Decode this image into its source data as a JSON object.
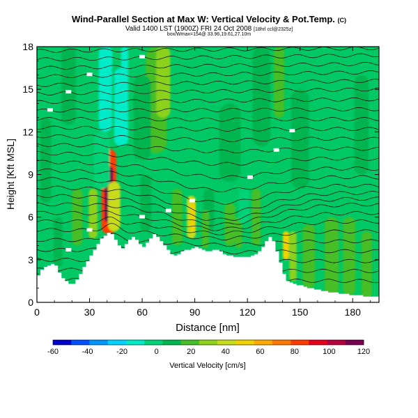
{
  "header": {
    "title": "Wind-Parallel Section at Max W: Vertical Velocity & Pot.Temp.",
    "copyright": "(C)",
    "valid_line": "Valid 1400 LST (1900Z) FRI 24 Oct 2008",
    "valid_suffix": "[18hrl ccl@2325z]",
    "subtitle": "box/Wmax=154@ 33.96,19.61,27.10m"
  },
  "chart_data": {
    "type": "heatmap",
    "xlabel": "Distance [nm]",
    "ylabel": "Height [Kft MSL]",
    "xlim": [
      0,
      195
    ],
    "ylim": [
      0,
      18
    ],
    "x_ticks": [
      0,
      30,
      60,
      90,
      120,
      150,
      180
    ],
    "y_ticks": [
      0,
      3,
      6,
      9,
      12,
      15,
      18
    ],
    "colorbar": {
      "label": "Vertical Velocity [cm/s]",
      "ticks": [
        -60,
        -40,
        -20,
        0,
        20,
        40,
        60,
        80,
        100,
        120
      ],
      "colors": [
        "#0000c8",
        "#0050ff",
        "#0096ff",
        "#00d2ff",
        "#00ebc8",
        "#00d278",
        "#00b450",
        "#46be28",
        "#8cd21e",
        "#c8dc1e",
        "#f0d200",
        "#ffaa00",
        "#ff7800",
        "#ff3c00",
        "#e6001e",
        "#b4003c",
        "#780050"
      ]
    },
    "terrain": {
      "x": [
        0,
        2,
        4,
        6,
        8,
        10,
        12,
        14,
        16,
        18,
        20,
        22,
        24,
        26,
        28,
        30,
        32,
        34,
        36,
        38,
        40,
        42,
        44,
        46,
        48,
        50,
        52,
        54,
        56,
        58,
        60,
        62,
        64,
        66,
        68,
        70,
        72,
        74,
        76,
        78,
        80,
        82,
        84,
        86,
        88,
        90,
        92,
        94,
        96,
        98,
        100,
        102,
        104,
        106,
        108,
        110,
        112,
        114,
        116,
        118,
        120,
        122,
        124,
        126,
        128,
        130,
        132,
        134,
        136,
        138,
        140,
        142,
        144,
        146,
        148,
        150,
        152,
        154,
        156,
        158,
        160,
        162,
        164,
        166,
        168,
        170,
        172,
        174,
        176,
        178,
        180,
        182,
        184,
        186,
        188,
        190,
        192,
        195
      ],
      "y": [
        1.9,
        2.3,
        2.5,
        2.6,
        2.7,
        2.6,
        2.1,
        1.7,
        1.5,
        1.3,
        1.3,
        1.6,
        2.0,
        2.5,
        2.9,
        3.3,
        3.7,
        4.1,
        4.5,
        4.7,
        4.9,
        4.8,
        4.4,
        4.0,
        3.8,
        4.1,
        4.4,
        4.6,
        4.4,
        4.1,
        3.9,
        4.2,
        4.5,
        4.8,
        4.6,
        4.3,
        4.0,
        3.7,
        3.4,
        3.3,
        3.4,
        3.6,
        3.7,
        3.7,
        3.8,
        3.9,
        3.8,
        3.7,
        3.6,
        3.6,
        3.7,
        3.7,
        3.6,
        3.4,
        3.3,
        3.3,
        3.2,
        3.2,
        3.2,
        3.2,
        3.2,
        3.3,
        3.4,
        3.6,
        3.9,
        4.3,
        4.6,
        4.3,
        3.6,
        2.8,
        2.0,
        1.5,
        1.4,
        1.3,
        1.2,
        1.2,
        1.1,
        1.0,
        1.0,
        0.9,
        0.9,
        0.8,
        0.8,
        0.7,
        0.7,
        0.7,
        0.6,
        0.6,
        0.6,
        0.5,
        0.5,
        0.5,
        0.5,
        0.4,
        0.4,
        0.4,
        0.4,
        0.4
      ]
    },
    "features": [
      {
        "x": 41,
        "y0": 4.8,
        "y1": 10.8,
        "w": 4.2,
        "v": 85
      },
      {
        "x": 41,
        "y0": 5.6,
        "y1": 9.6,
        "w": 2.4,
        "v": 110
      },
      {
        "x": 44,
        "y0": 5.0,
        "y1": 8.5,
        "w": 3.5,
        "v": 40
      },
      {
        "x": 40,
        "y0": 16.2,
        "y1": 18.0,
        "w": 3.0,
        "v": -15
      },
      {
        "x": 39,
        "y0": 12.0,
        "y1": 18.0,
        "w": 3.8,
        "v": -8
      },
      {
        "x": 37,
        "y0": 8.0,
        "y1": 12.0,
        "w": 4.5,
        "v": -2
      },
      {
        "x": 48,
        "y0": 11.0,
        "y1": 16.5,
        "w": 4.0,
        "v": -8
      },
      {
        "x": 50,
        "y0": 15.0,
        "y1": 18.0,
        "w": 2.0,
        "v": -10
      },
      {
        "x": 68,
        "y0": 10.5,
        "y1": 18.0,
        "w": 6.0,
        "v": 15
      },
      {
        "x": 72,
        "y0": 13.0,
        "y1": 18.0,
        "w": 4.0,
        "v": 28
      },
      {
        "x": 60,
        "y0": 10.0,
        "y1": 16.0,
        "w": 5.0,
        "v": 8
      },
      {
        "x": 88,
        "y0": 4.5,
        "y1": 7.5,
        "w": 2.5,
        "v": 40
      },
      {
        "x": 89,
        "y0": 5.0,
        "y1": 7.0,
        "w": 1.5,
        "v": 55
      },
      {
        "x": 98,
        "y0": 5.0,
        "y1": 8.0,
        "w": 3.0,
        "v": 8
      },
      {
        "x": 96,
        "y0": 3.8,
        "y1": 6.5,
        "w": 2.0,
        "v": 22
      },
      {
        "x": 110,
        "y0": 4.0,
        "y1": 7.0,
        "w": 3.0,
        "v": 22
      },
      {
        "x": 115,
        "y0": 3.8,
        "y1": 6.0,
        "w": 2.0,
        "v": 15
      },
      {
        "x": 118,
        "y0": 5.5,
        "y1": 8.0,
        "w": 3.0,
        "v": -3
      },
      {
        "x": 128,
        "y0": 11.0,
        "y1": 18.0,
        "w": 5.0,
        "v": 12
      },
      {
        "x": 138,
        "y0": 13.0,
        "y1": 18.0,
        "w": 3.0,
        "v": 18
      },
      {
        "x": 142,
        "y0": 3.0,
        "y1": 5.0,
        "w": 1.8,
        "v": 48
      },
      {
        "x": 146,
        "y0": 1.5,
        "y1": 5.0,
        "w": 2.0,
        "v": 25
      },
      {
        "x": 155,
        "y0": 1.0,
        "y1": 5.5,
        "w": 3.5,
        "v": 22
      },
      {
        "x": 168,
        "y0": 0.5,
        "y1": 6.0,
        "w": 4.0,
        "v": 20
      },
      {
        "x": 178,
        "y0": 0.5,
        "y1": 6.0,
        "w": 3.5,
        "v": 18
      },
      {
        "x": 188,
        "y0": 0.3,
        "y1": 5.0,
        "w": 3.0,
        "v": 22
      },
      {
        "x": 18,
        "y0": 12.5,
        "y1": 18.0,
        "w": 4.0,
        "v": 8
      },
      {
        "x": 5,
        "y0": 7.0,
        "y1": 13.0,
        "w": 3.0,
        "v": 10
      },
      {
        "x": 23,
        "y0": 4.0,
        "y1": 8.0,
        "w": 3.0,
        "v": 15
      },
      {
        "x": 32,
        "y0": 4.5,
        "y1": 8.0,
        "w": 2.5,
        "v": 25
      },
      {
        "x": 12,
        "y0": 2.5,
        "y1": 6.0,
        "w": 2.5,
        "v": 12
      },
      {
        "x": 62,
        "y0": 5.0,
        "y1": 9.0,
        "w": 3.0,
        "v": 10
      },
      {
        "x": 80,
        "y0": 4.0,
        "y1": 8.0,
        "w": 3.0,
        "v": 15
      },
      {
        "x": 125,
        "y0": 4.0,
        "y1": 8.0,
        "w": 2.5,
        "v": 15
      },
      {
        "x": 110,
        "y0": 8.5,
        "y1": 14.0,
        "w": 6.0,
        "v": 6
      },
      {
        "x": 150,
        "y0": 8.0,
        "y1": 15.0,
        "w": 5.0,
        "v": 8
      },
      {
        "x": 185,
        "y0": 9.0,
        "y1": 16.0,
        "w": 4.0,
        "v": 6
      }
    ],
    "isentropes": {
      "count": 27,
      "left_heights": [
        1.6,
        2.3,
        3.0,
        3.7,
        4.4,
        5.1,
        5.7,
        6.3,
        6.9,
        7.5,
        8.1,
        8.7,
        9.3,
        9.9,
        10.5,
        11.1,
        11.7,
        12.3,
        12.9,
        13.5,
        14.1,
        14.7,
        15.3,
        15.9,
        16.5,
        17.1,
        17.7
      ],
      "right_heights": [
        1.5,
        2.2,
        2.9,
        3.6,
        4.3,
        5.0,
        5.7,
        6.3,
        6.9,
        7.3,
        7.7,
        8.2,
        8.8,
        9.4,
        10.1,
        10.8,
        11.5,
        12.2,
        12.9,
        13.6,
        14.3,
        15.0,
        15.6,
        16.2,
        16.8,
        17.4,
        17.9
      ],
      "trough_center_x": 104,
      "trough_width": 38,
      "label_xs": [
        8,
        18,
        30,
        60,
        75,
        88,
        122,
        136,
        145
      ]
    }
  }
}
